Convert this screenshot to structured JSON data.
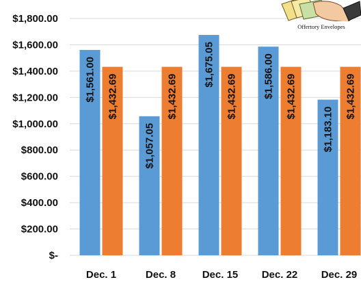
{
  "chart_data": {
    "type": "bar",
    "categories": [
      "Dec. 1",
      "Dec. 8",
      "Dec. 15",
      "Dec. 22",
      "Dec. 29"
    ],
    "series": [
      {
        "values": [
          1561.0,
          1057.05,
          1675.05,
          1586.0,
          1183.1
        ],
        "color": "#5b9bd5"
      },
      {
        "values": [
          1432.69,
          1432.69,
          1432.69,
          1432.69,
          1432.69
        ],
        "color": "#ed7d31"
      }
    ],
    "data_labels": [
      [
        "$1,561.00",
        "$1,057.05",
        "$1,675.05",
        "$1,586.00",
        "$1,183.10"
      ],
      [
        "$1,432.69",
        "$1,432.69",
        "$1,432.69",
        "$1,432.69",
        "$1,432.69"
      ]
    ],
    "y_tick_values": [
      0,
      200,
      400,
      600,
      800,
      1000,
      1200,
      1400,
      1600,
      1800
    ],
    "y_tick_labels": [
      "$-",
      "$200.00",
      "$400.00",
      "$600.00",
      "$800.00",
      "$1,000.00",
      "$1,200.00",
      "$1,400.00",
      "$1,600.00",
      "$1,800.00"
    ],
    "ylim": [
      0,
      1800
    ],
    "grid": true,
    "title": "",
    "xlabel": "",
    "ylabel": ""
  },
  "image_caption": "Offertory Envelopes",
  "image_icon": "offertory-envelopes-hand-icon"
}
